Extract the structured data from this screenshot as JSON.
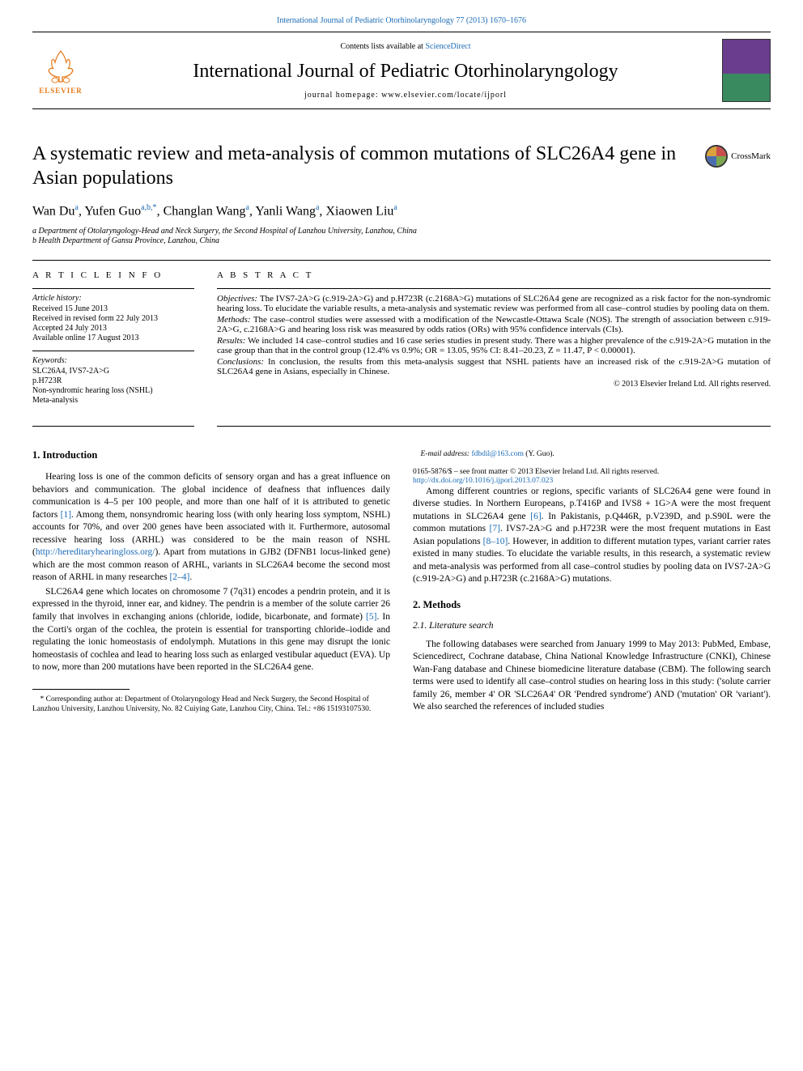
{
  "journal_link": "International Journal of Pediatric Otorhinolaryngology 77 (2013) 1670–1676",
  "header": {
    "contents_prefix": "Contents lists available at ",
    "contents_link": "ScienceDirect",
    "journal_title": "International Journal of Pediatric Otorhinolaryngology",
    "homepage_prefix": "journal homepage: ",
    "homepage_url": "www.elsevier.com/locate/ijporl",
    "elsevier_label": "ELSEVIER"
  },
  "crossmark_label": "CrossMark",
  "title": "A systematic review and meta-analysis of common mutations of SLC26A4 gene in Asian populations",
  "authors_html": [
    {
      "name": "Wan Du",
      "aff": "a"
    },
    {
      "name": "Yufen Guo",
      "aff": "a,b,*"
    },
    {
      "name": "Changlan Wang",
      "aff": "a"
    },
    {
      "name": "Yanli Wang",
      "aff": "a"
    },
    {
      "name": "Xiaowen Liu",
      "aff": "a"
    }
  ],
  "affiliations": [
    "a Department of Otolaryngology-Head and Neck Surgery, the Second Hospital of Lanzhou University, Lanzhou, China",
    "b Health Department of Gansu Province, Lanzhou, China"
  ],
  "article_info": {
    "heading": "A R T I C L E   I N F O",
    "history_label": "Article history:",
    "history": [
      "Received 15 June 2013",
      "Received in revised form 22 July 2013",
      "Accepted 24 July 2013",
      "Available online 17 August 2013"
    ],
    "keywords_label": "Keywords:",
    "keywords": [
      "SLC26A4, IVS7-2A>G",
      "p.H723R",
      "Non-syndromic hearing loss (NSHL)",
      "Meta-analysis"
    ]
  },
  "abstract": {
    "heading": "A B S T R A C T",
    "objectives_label": "Objectives:",
    "objectives": "The IVS7-2A>G (c.919-2A>G) and p.H723R (c.2168A>G) mutations of SLC26A4 gene are recognized as a risk factor for the non-syndromic hearing loss. To elucidate the variable results, a meta-analysis and systematic review was performed from all case–control studies by pooling data on them.",
    "methods_label": "Methods:",
    "methods": "The case–control studies were assessed with a modification of the Newcastle-Ottawa Scale (NOS). The strength of association between c.919-2A>G, c.2168A>G and hearing loss risk was measured by odds ratios (ORs) with 95% confidence intervals (CIs).",
    "results_label": "Results:",
    "results": "We included 14 case–control studies and 16 case series studies in present study. There was a higher prevalence of the c.919-2A>G mutation in the case group than that in the control group (12.4% vs 0.9%; OR = 13.05, 95% CI: 8.41–20.23, Z = 11.47, P < 0.00001).",
    "conclusions_label": "Conclusions:",
    "conclusions": "In conclusion, the results from this meta-analysis suggest that NSHL patients have an increased risk of the c.919-2A>G mutation of SLC26A4 gene in Asians, especially in Chinese.",
    "copyright": "© 2013 Elsevier Ireland Ltd. All rights reserved."
  },
  "body": {
    "intro_heading": "1. Introduction",
    "p1a": "Hearing loss is one of the common deficits of sensory organ and has a great influence on behaviors and communication. The global incidence of deafness that influences daily communication is 4–5 per 100 people, and more than one half of it is attributed to genetic factors ",
    "ref1": "[1]",
    "p1b": ". Among them, nonsyndromic hearing loss (with only hearing loss symptom, NSHL) accounts for 70%, and over 200 genes have been associated with it. Furthermore, autosomal recessive hearing loss (ARHL) was considered to be the main reason of NSHL (",
    "url1": "http://hereditaryhearingloss.org/",
    "p1c": "). Apart from mutations in GJB2 (DFNB1 locus-linked gene) which are the most common reason of ARHL, variants in SLC26A4 become the second most reason of ARHL in many researches ",
    "ref2": "[2–4]",
    "p1d": ".",
    "p2a": "SLC26A4 gene which locates on chromosome 7 (7q31) encodes a pendrin protein, and it is expressed in the thyroid, inner ear, and kidney. The pendrin is a member of the solute carrier 26 family that involves in exchanging anions (chloride, iodide, bicarbonate, and formate) ",
    "ref5": "[5]",
    "p2b": ". In the Corti's organ of the cochlea, the protein is essential for transporting chloride–iodide and regulating the ionic homeostasis of endolymph. Mutations in this gene may disrupt the ionic homeostasis of cochlea and lead to hearing loss such as enlarged vestibular aqueduct (EVA). Up to now, more than 200 mutations have been reported in the SLC26A4 gene.",
    "p3a": "Among different countries or regions, specific variants of SLC26A4 gene were found in diverse studies. In Northern Europeans, p.T416P and IVS8 + 1G>A were the most frequent mutations in SLC26A4 gene ",
    "ref6": "[6]",
    "p3b": ". In Pakistanis, p.Q446R, p.V239D, and p.S90L were the common mutations ",
    "ref7": "[7]",
    "p3c": ". IVS7-2A>G and p.H723R were the most frequent mutations in East Asian populations ",
    "ref8": "[8–10]",
    "p3d": ". However, in addition to different mutation types, variant carrier rates existed in many studies. To elucidate the variable results, in this research, a systematic review and meta-analysis was performed from all case–control studies by pooling data on IVS7-2A>G (c.919-2A>G) and p.H723R (c.2168A>G) mutations.",
    "methods_heading": "2. Methods",
    "lit_heading": "2.1. Literature search",
    "p4": "The following databases were searched from January 1999 to May 2013: PubMed, Embase, Sciencedirect, Cochrane database, China National Knowledge Infrastructure (CNKI), Chinese Wan-Fang database and Chinese biomedicine literature database (CBM). The following search terms were used to identify all case–control studies on hearing loss in this study: ('solute carrier family 26, member 4' OR 'SLC26A4' OR 'Pendred syndrome') AND ('mutation' OR 'variant'). We also searched the references of included studies"
  },
  "footnotes": {
    "corr": "* Corresponding author at: Department of Otolaryngology Head and Neck Surgery, the Second Hospital of Lanzhou University, Lanzhou University, No. 82 Cuiying Gate, Lanzhou City, China. Tel.: +86 15193107530.",
    "email_label": "E-mail address: ",
    "email": "fdbdil@163.com",
    "email_suffix": " (Y. Guo)."
  },
  "footer": {
    "line1": "0165-5876/$ – see front matter © 2013 Elsevier Ireland Ltd. All rights reserved.",
    "doi": "http://dx.doi.org/10.1016/j.ijporl.2013.07.023"
  },
  "colors": {
    "link": "#1a6bb5",
    "elsevier_orange": "#e67817"
  }
}
